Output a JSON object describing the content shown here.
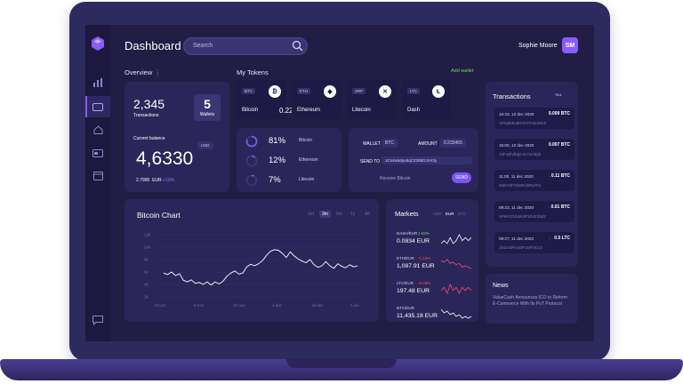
{
  "header": {
    "title": "Dashboard",
    "search_placeholder": "Search",
    "user_name": "Sophie Moore",
    "user_initials": "SM"
  },
  "overview": {
    "title": "Overview",
    "transactions_count": "2,345",
    "transactions_label": "Transactions",
    "wallets_count": "5",
    "wallets_label": "Wallets",
    "balance_label": "Current balance",
    "balance_currency": "USD",
    "balance": "4,6330",
    "sub_value": "2.7995",
    "sub_currency": "EUR",
    "sub_change": "+10%"
  },
  "tokens": {
    "title": "My Tokens",
    "add_wallet": "Add wallet",
    "items": [
      {
        "tag": "BTC",
        "name": "Bitcoin",
        "value": "0.221746",
        "icon": "bitcoin-icon",
        "glyph": "₿"
      },
      {
        "tag": "ETH",
        "name": "Ethereum",
        "value": "",
        "icon": "ethereum-icon",
        "glyph": "◆"
      },
      {
        "tag": "XRP",
        "name": "Litecoin",
        "value": "",
        "icon": "xrp-icon",
        "glyph": "✕"
      },
      {
        "tag": "LTC",
        "name": "Dash",
        "value": "",
        "icon": "litecoin-icon",
        "glyph": "Ł"
      }
    ]
  },
  "allocation": [
    {
      "percent": "81%",
      "name": "Bitcoin",
      "fraction": 0.81
    },
    {
      "percent": "12%",
      "name": "Ethereum",
      "fraction": 0.12
    },
    {
      "percent": "7%",
      "name": "Litecoin",
      "fraction": 0.07
    }
  ],
  "send": {
    "wallet_label": "WALLET",
    "wallet_value": "BTC",
    "amount_label": "AMOUNT",
    "amount_value": "0.233455",
    "send_to_label": "SEND TO",
    "address": "1Cs4wu6pu5qCZ35bDJVn3y",
    "receive_label": "Receive Bitcoin",
    "send_button": "SEND"
  },
  "bitcoin_chart": {
    "title": "Bitcoin Chart",
    "ranges": [
      "1m",
      "3m",
      "6m",
      "1y",
      "All"
    ],
    "active_range": "3m"
  },
  "chart_data": {
    "type": "line",
    "title": "Bitcoin Chart",
    "x_ticks": [
      "23 oct",
      "6 nov",
      "20 nov",
      "4 dec",
      "18 dec",
      "1 jan"
    ],
    "y_ticks": [
      "12k",
      "10k",
      "8k",
      "6k",
      "4k",
      "2k"
    ],
    "ylim": [
      0,
      12
    ],
    "values": [
      4.6,
      4.3,
      4.8,
      4.1,
      4.5,
      3.2,
      2.9,
      3.3,
      2.6,
      2.8,
      2.4,
      2.9,
      2.3,
      2.9,
      2.5,
      3.0,
      4.0,
      4.6,
      5.0,
      4.4,
      4.6,
      5.8,
      6.3,
      6.0,
      6.4,
      7.0,
      8.0,
      8.8,
      9.1,
      9.0,
      8.4,
      7.6,
      8.7,
      7.9,
      7.3,
      6.9,
      6.6,
      7.2,
      6.2,
      5.7,
      6.0,
      6.8,
      6.0,
      5.5,
      6.4,
      5.9,
      5.6,
      6.2,
      5.8,
      6.0
    ]
  },
  "markets": {
    "title": "Markets",
    "currencies": [
      "USD",
      "EUR",
      "BTC"
    ],
    "active_currency": "EUR",
    "rows": [
      {
        "pair": "DASH/EUR",
        "change": "1.63%",
        "up": true,
        "price": "0.0834 EUR",
        "spark": [
          5,
          6,
          5,
          7,
          5,
          6,
          8,
          6,
          7,
          6,
          7
        ]
      },
      {
        "pair": "ETH/EUR",
        "change": "-1.14%",
        "up": false,
        "price": "1,087.91 EUR",
        "spark": [
          8,
          7,
          9,
          6,
          7,
          5,
          6,
          3,
          4,
          3,
          2
        ]
      },
      {
        "pair": "LTC/EUR",
        "change": "-0.48%",
        "up": false,
        "price": "197.48 EUR",
        "spark": [
          5,
          6,
          4,
          7,
          5,
          6,
          4,
          6,
          5,
          6,
          5
        ]
      },
      {
        "pair": "BTC/EUR",
        "change": "",
        "up": true,
        "price": "11,435.18 EUR",
        "spark": [
          8,
          6,
          7,
          5,
          6,
          4,
          5,
          3,
          4,
          3,
          4
        ]
      }
    ]
  },
  "transactions": {
    "title": "Transactions",
    "all_label": "ALL",
    "items": [
      {
        "date": "16:23, 12 dec 2020",
        "amount": "0.009 BTC",
        "hash": "1PRj85hu9RXF2Tx8oNfe5",
        "direction": "out"
      },
      {
        "date": "15:00, 12 dec 2020",
        "amount": "0.007 BTC",
        "hash": "14FuBhdbgC4x7aG8gh",
        "direction": "out"
      },
      {
        "date": "11:00, 11 dec 2020",
        "amount": "0.11 BTC",
        "hash": "3M5TdFX59OUbRyhFu",
        "direction": "in"
      },
      {
        "date": "09:23, 11 dec 2020",
        "amount": "0.01 BTC",
        "hash": "1P9KGh3xa6JPXb4Z35d2",
        "direction": "out"
      },
      {
        "date": "09:27, 11 dec 2020",
        "amount": "0.5 LTC",
        "hash": "1kGmdFrx40FUeFf4Cv3",
        "direction": "in"
      }
    ]
  },
  "news": {
    "title": "News",
    "body": "ValueCash Announces ICO to Reform E-Commerce With Its PoT Protocol"
  },
  "colors": {
    "accent": "#8a5bff",
    "up": "#6ddc5a",
    "down": "#ff4d6a"
  }
}
